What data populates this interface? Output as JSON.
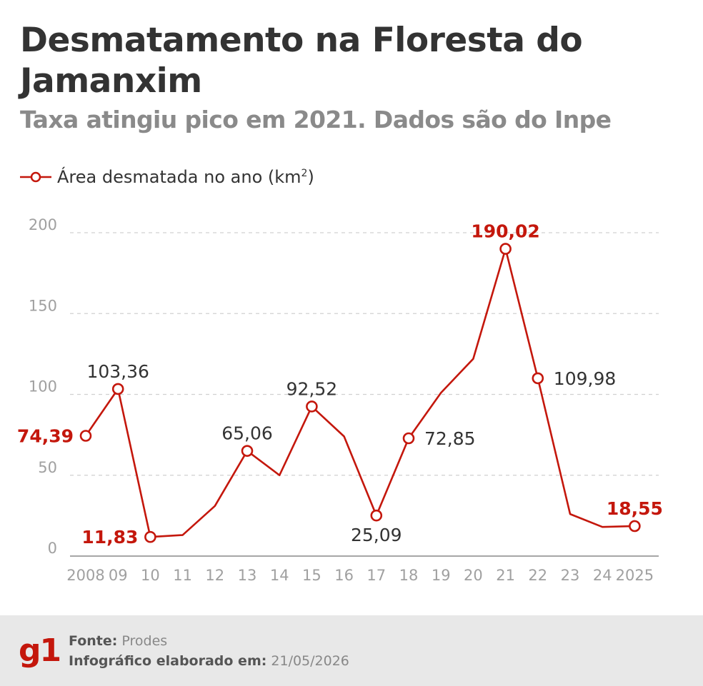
{
  "title": "Desmatamento na Floresta do Jamanxim",
  "subtitle": "Taxa atingiu pico em 2021. Dados são do Inpe",
  "legend": {
    "label": "Área desmatada no ano (km",
    "unit_sup": "2",
    "close": ")"
  },
  "colors": {
    "series": "#c4170c",
    "text": "#333333",
    "axis": "#a0a0a0",
    "grid": "#d0d0d0"
  },
  "chart_data": {
    "type": "line",
    "title": "Desmatamento na Floresta do Jamanxim",
    "subtitle": "Taxa atingiu pico em 2021. Dados são do Inpe",
    "xlabel": "",
    "ylabel": "",
    "x": [
      2008,
      2009,
      2010,
      2011,
      2012,
      2013,
      2014,
      2015,
      2016,
      2017,
      2018,
      2019,
      2020,
      2021,
      2022,
      2023,
      2024,
      2025
    ],
    "x_tick_labels": [
      "2008",
      "09",
      "10",
      "11",
      "12",
      "13",
      "14",
      "15",
      "16",
      "17",
      "18",
      "19",
      "20",
      "21",
      "22",
      "23",
      "24",
      "2025"
    ],
    "series": [
      {
        "name": "Área desmatada no ano (km²)",
        "values": [
          74.39,
          103.36,
          11.83,
          13,
          31,
          65.06,
          50,
          92.52,
          74,
          25.09,
          72.85,
          101,
          122,
          190.02,
          109.98,
          26,
          18,
          18.55
        ]
      }
    ],
    "ylim": [
      0,
      200
    ],
    "y_ticks": [
      0,
      50,
      100,
      150,
      200
    ],
    "y_tick_labels": [
      "0",
      "50",
      "100",
      "150",
      "200"
    ],
    "grid": true,
    "legend_position": "top-left",
    "annotations": [
      {
        "index": 0,
        "text": "74,39",
        "style": "highlight",
        "side": "left"
      },
      {
        "index": 1,
        "text": "103,36",
        "style": "normal",
        "side": "above"
      },
      {
        "index": 2,
        "text": "11,83",
        "style": "highlight",
        "side": "left"
      },
      {
        "index": 5,
        "text": "65,06",
        "style": "normal",
        "side": "above"
      },
      {
        "index": 7,
        "text": "92,52",
        "style": "normal",
        "side": "above"
      },
      {
        "index": 9,
        "text": "25,09",
        "style": "normal",
        "side": "below"
      },
      {
        "index": 10,
        "text": "72,85",
        "style": "normal",
        "side": "right"
      },
      {
        "index": 13,
        "text": "190,02",
        "style": "highlight",
        "side": "above"
      },
      {
        "index": 14,
        "text": "109,98",
        "style": "normal",
        "side": "right"
      },
      {
        "index": 17,
        "text": "18,55",
        "style": "highlight",
        "side": "above"
      }
    ]
  },
  "footer": {
    "logo": "g1",
    "source_label": "Fonte:",
    "source_value": "Prodes",
    "date_label": "Infográfico elaborado em:",
    "date_value": "21/05/2026"
  }
}
